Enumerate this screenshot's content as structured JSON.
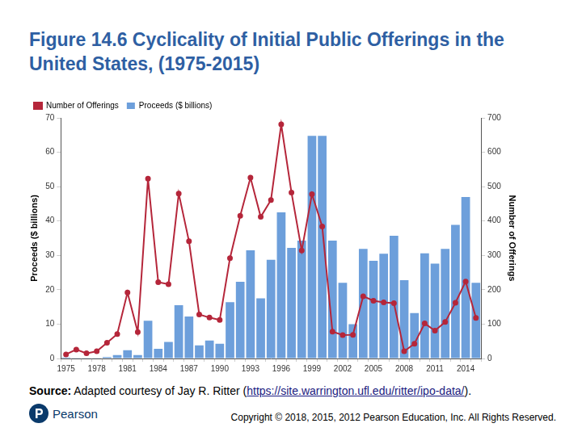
{
  "chart_data": {
    "type": "bar",
    "title": "Figure 14.6 Cyclicality of Initial Public Offerings in the United States, (1975-2015)",
    "categories": [
      "1975",
      null,
      null,
      "1978",
      null,
      null,
      "1981",
      null,
      null,
      "1984",
      null,
      null,
      "1987",
      null,
      null,
      "1990",
      null,
      null,
      "1993",
      null,
      null,
      "1996",
      null,
      null,
      "1999",
      null,
      null,
      "2002",
      null,
      null,
      "2005",
      null,
      null,
      "2008",
      null,
      null,
      "2011",
      null,
      null,
      "2014",
      null
    ],
    "series": [
      {
        "name": "Proceeds ($ billions)",
        "type": "bar",
        "color": "#6d9fdb",
        "values": [
          0.3,
          0.2,
          0.2,
          0.2,
          0.4,
          1.0,
          2.4,
          1.0,
          11.0,
          2.8,
          4.8,
          15.5,
          12.2,
          3.8,
          5.2,
          4.3,
          16.4,
          22.3,
          31.5,
          17.5,
          28.7,
          42.5,
          32.2,
          34.3,
          64.8,
          64.8,
          34.3,
          22.0,
          10.0,
          31.9,
          28.4,
          30.5,
          35.7,
          22.8,
          13.2,
          30.6,
          27.6,
          31.9,
          38.9,
          47.0,
          22.0
        ]
      },
      {
        "name": "Number of Offerings",
        "type": "line",
        "axis": "y2",
        "color": "#b5263a",
        "marker": "circle",
        "line_style": "solid",
        "values": [
          12,
          26,
          15,
          21,
          46,
          71,
          192,
          77,
          523,
          222,
          216,
          480,
          341,
          128,
          119,
          112,
          292,
          415,
          526,
          412,
          461,
          681,
          483,
          314,
          478,
          384,
          78,
          68,
          69,
          181,
          168,
          163,
          161,
          21,
          43,
          102,
          81,
          106,
          162,
          224,
          118
        ]
      }
    ],
    "y_label": "Proceeds ($ billions)",
    "y2_label": "Number of Offerings",
    "ylim": [
      0,
      70
    ],
    "yticks": [
      0,
      10,
      20,
      30,
      40,
      50,
      60,
      70
    ],
    "y2lim": [
      0,
      700
    ],
    "y2ticks": [
      0,
      100,
      200,
      300,
      400,
      500,
      600,
      700
    ],
    "grid": false,
    "legend": "upper left"
  },
  "source": {
    "label": "Source:",
    "text_before": "Adapted courtesy of Jay R. Ritter (",
    "link": "https://site.warrington.ufl.edu/ritter/ipo-data/",
    "text_after": ")."
  },
  "copyright": "Copyright © 2018, 2015, 2012 Pearson Education, Inc. All Rights Reserved.",
  "logo": "Pearson"
}
